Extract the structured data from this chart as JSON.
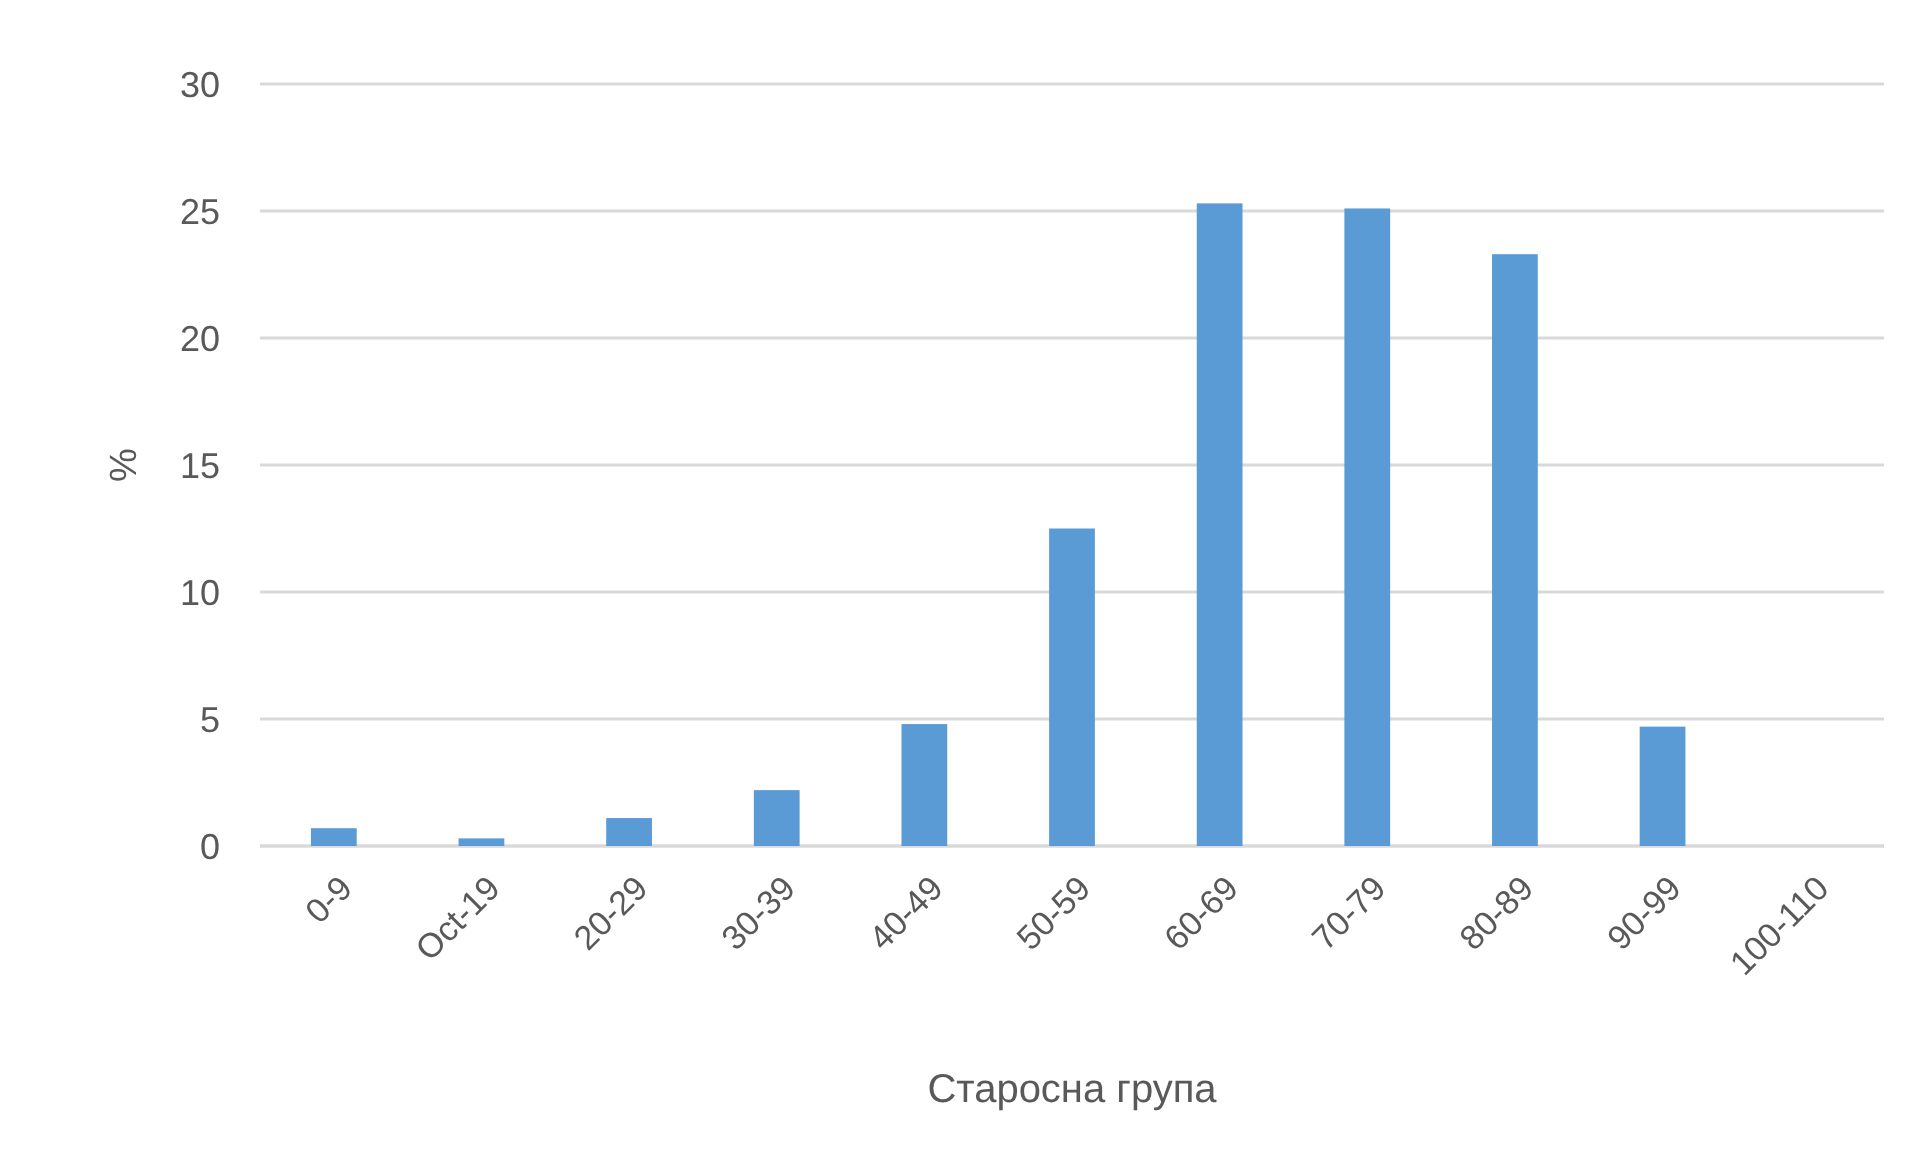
{
  "chart_data": {
    "type": "bar",
    "xlabel": "Старосна група",
    "ylabel": "%",
    "categories": [
      "0-9",
      "Oct-19",
      "20-29",
      "30-39",
      "40-49",
      "50-59",
      "60-69",
      "70-79",
      "80-89",
      "90-99",
      "100-110"
    ],
    "values": [
      0.7,
      0.3,
      1.1,
      2.2,
      4.8,
      12.5,
      25.3,
      25.1,
      23.3,
      4.7,
      0
    ],
    "color": "#5b9bd5",
    "ylim": [
      0,
      30
    ],
    "yticks": [
      0,
      5,
      10,
      15,
      20,
      25,
      30
    ],
    "grid": "y"
  }
}
